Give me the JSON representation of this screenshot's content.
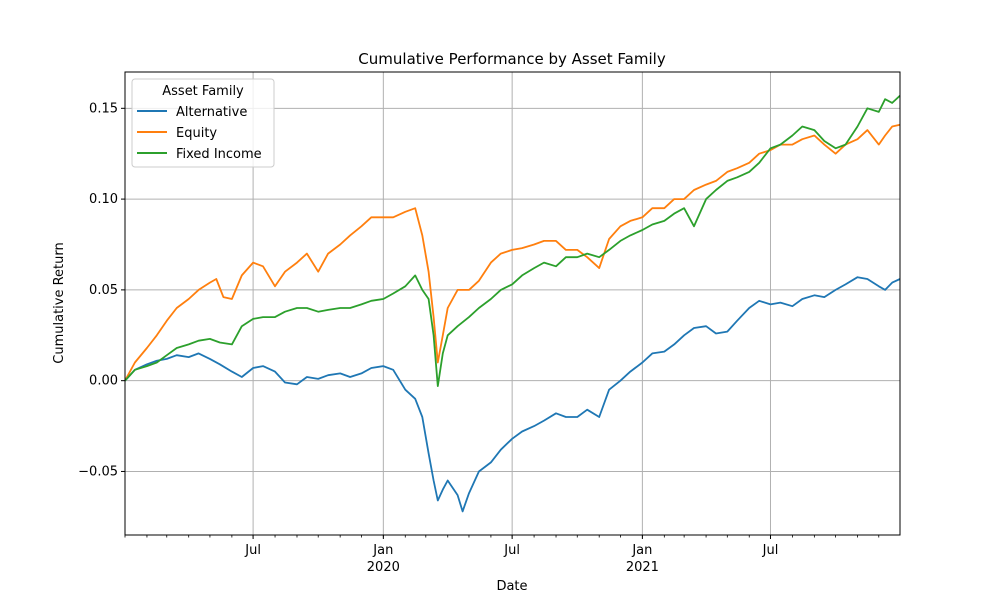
{
  "chart_data": {
    "type": "line",
    "title": "Cumulative Performance by Asset Family",
    "xlabel": "Date",
    "ylabel": "Cumulative Return",
    "xlim": [
      "2019-01-01",
      "2021-12-31"
    ],
    "ylim": [
      -0.085,
      0.17
    ],
    "grid": true,
    "legend": {
      "title": "Asset Family",
      "placement": "top-left"
    },
    "yticks": [
      {
        "value": -0.05,
        "label": "−0.05"
      },
      {
        "value": 0.0,
        "label": "0.00"
      },
      {
        "value": 0.05,
        "label": "0.05"
      },
      {
        "value": 0.1,
        "label": "0.10"
      },
      {
        "value": 0.15,
        "label": "0.15"
      }
    ],
    "xticks_major": [
      {
        "date": "2019-07-01",
        "label": "Jul",
        "sublabel": ""
      },
      {
        "date": "2020-01-01",
        "label": "Jan",
        "sublabel": "2020"
      },
      {
        "date": "2020-07-01",
        "label": "Jul",
        "sublabel": ""
      },
      {
        "date": "2021-01-01",
        "label": "Jan",
        "sublabel": "2021"
      },
      {
        "date": "2021-07-01",
        "label": "Jul",
        "sublabel": ""
      }
    ],
    "series": [
      {
        "name": "Alternative",
        "color": "#1f77b4",
        "points": [
          [
            "2019-01-01",
            0.0
          ],
          [
            "2019-01-15",
            0.006
          ],
          [
            "2019-02-01",
            0.009
          ],
          [
            "2019-02-15",
            0.011
          ],
          [
            "2019-03-01",
            0.012
          ],
          [
            "2019-03-15",
            0.014
          ],
          [
            "2019-04-01",
            0.013
          ],
          [
            "2019-04-15",
            0.015
          ],
          [
            "2019-05-01",
            0.012
          ],
          [
            "2019-05-15",
            0.009
          ],
          [
            "2019-06-01",
            0.005
          ],
          [
            "2019-06-15",
            0.002
          ],
          [
            "2019-07-01",
            0.007
          ],
          [
            "2019-07-15",
            0.008
          ],
          [
            "2019-08-01",
            0.005
          ],
          [
            "2019-08-15",
            -0.001
          ],
          [
            "2019-09-01",
            -0.002
          ],
          [
            "2019-09-15",
            0.002
          ],
          [
            "2019-10-01",
            0.001
          ],
          [
            "2019-10-15",
            0.003
          ],
          [
            "2019-11-01",
            0.004
          ],
          [
            "2019-11-15",
            0.002
          ],
          [
            "2019-12-01",
            0.004
          ],
          [
            "2019-12-15",
            0.007
          ],
          [
            "2020-01-01",
            0.008
          ],
          [
            "2020-01-15",
            0.006
          ],
          [
            "2020-02-01",
            -0.005
          ],
          [
            "2020-02-15",
            -0.01
          ],
          [
            "2020-02-25",
            -0.02
          ],
          [
            "2020-03-05",
            -0.04
          ],
          [
            "2020-03-12",
            -0.055
          ],
          [
            "2020-03-18",
            -0.066
          ],
          [
            "2020-03-25",
            -0.06
          ],
          [
            "2020-04-01",
            -0.055
          ],
          [
            "2020-04-15",
            -0.063
          ],
          [
            "2020-04-22",
            -0.072
          ],
          [
            "2020-05-01",
            -0.062
          ],
          [
            "2020-05-15",
            -0.05
          ],
          [
            "2020-06-01",
            -0.045
          ],
          [
            "2020-06-15",
            -0.038
          ],
          [
            "2020-07-01",
            -0.032
          ],
          [
            "2020-07-15",
            -0.028
          ],
          [
            "2020-08-01",
            -0.025
          ],
          [
            "2020-08-15",
            -0.022
          ],
          [
            "2020-09-01",
            -0.018
          ],
          [
            "2020-09-15",
            -0.02
          ],
          [
            "2020-10-01",
            -0.02
          ],
          [
            "2020-10-15",
            -0.016
          ],
          [
            "2020-11-01",
            -0.02
          ],
          [
            "2020-11-15",
            -0.005
          ],
          [
            "2020-12-01",
            0.0
          ],
          [
            "2020-12-15",
            0.005
          ],
          [
            "2021-01-01",
            0.01
          ],
          [
            "2021-01-15",
            0.015
          ],
          [
            "2021-02-01",
            0.016
          ],
          [
            "2021-02-15",
            0.02
          ],
          [
            "2021-03-01",
            0.025
          ],
          [
            "2021-03-15",
            0.029
          ],
          [
            "2021-04-01",
            0.03
          ],
          [
            "2021-04-15",
            0.026
          ],
          [
            "2021-05-01",
            0.027
          ],
          [
            "2021-05-15",
            0.033
          ],
          [
            "2021-06-01",
            0.04
          ],
          [
            "2021-06-15",
            0.044
          ],
          [
            "2021-07-01",
            0.042
          ],
          [
            "2021-07-15",
            0.043
          ],
          [
            "2021-08-01",
            0.041
          ],
          [
            "2021-08-15",
            0.045
          ],
          [
            "2021-09-01",
            0.047
          ],
          [
            "2021-09-15",
            0.046
          ],
          [
            "2021-10-01",
            0.05
          ],
          [
            "2021-10-15",
            0.053
          ],
          [
            "2021-11-01",
            0.057
          ],
          [
            "2021-11-15",
            0.056
          ],
          [
            "2021-12-01",
            0.052
          ],
          [
            "2021-12-10",
            0.05
          ],
          [
            "2021-12-20",
            0.054
          ],
          [
            "2021-12-31",
            0.056
          ]
        ]
      },
      {
        "name": "Equity",
        "color": "#ff7f0e",
        "points": [
          [
            "2019-01-01",
            0.0
          ],
          [
            "2019-01-15",
            0.01
          ],
          [
            "2019-02-01",
            0.018
          ],
          [
            "2019-02-15",
            0.025
          ],
          [
            "2019-03-01",
            0.033
          ],
          [
            "2019-03-15",
            0.04
          ],
          [
            "2019-04-01",
            0.045
          ],
          [
            "2019-04-15",
            0.05
          ],
          [
            "2019-05-01",
            0.054
          ],
          [
            "2019-05-10",
            0.056
          ],
          [
            "2019-05-20",
            0.046
          ],
          [
            "2019-06-01",
            0.045
          ],
          [
            "2019-06-15",
            0.058
          ],
          [
            "2019-07-01",
            0.065
          ],
          [
            "2019-07-15",
            0.063
          ],
          [
            "2019-08-01",
            0.052
          ],
          [
            "2019-08-15",
            0.06
          ],
          [
            "2019-09-01",
            0.065
          ],
          [
            "2019-09-15",
            0.07
          ],
          [
            "2019-10-01",
            0.06
          ],
          [
            "2019-10-15",
            0.07
          ],
          [
            "2019-11-01",
            0.075
          ],
          [
            "2019-11-15",
            0.08
          ],
          [
            "2019-12-01",
            0.085
          ],
          [
            "2019-12-15",
            0.09
          ],
          [
            "2020-01-01",
            0.09
          ],
          [
            "2020-01-15",
            0.09
          ],
          [
            "2020-02-01",
            0.093
          ],
          [
            "2020-02-15",
            0.095
          ],
          [
            "2020-02-25",
            0.08
          ],
          [
            "2020-03-05",
            0.06
          ],
          [
            "2020-03-12",
            0.035
          ],
          [
            "2020-03-18",
            0.01
          ],
          [
            "2020-03-25",
            0.025
          ],
          [
            "2020-04-01",
            0.04
          ],
          [
            "2020-04-15",
            0.05
          ],
          [
            "2020-05-01",
            0.05
          ],
          [
            "2020-05-15",
            0.055
          ],
          [
            "2020-06-01",
            0.065
          ],
          [
            "2020-06-15",
            0.07
          ],
          [
            "2020-07-01",
            0.072
          ],
          [
            "2020-07-15",
            0.073
          ],
          [
            "2020-08-01",
            0.075
          ],
          [
            "2020-08-15",
            0.077
          ],
          [
            "2020-09-01",
            0.077
          ],
          [
            "2020-09-15",
            0.072
          ],
          [
            "2020-10-01",
            0.072
          ],
          [
            "2020-10-15",
            0.068
          ],
          [
            "2020-11-01",
            0.062
          ],
          [
            "2020-11-15",
            0.078
          ],
          [
            "2020-12-01",
            0.085
          ],
          [
            "2020-12-15",
            0.088
          ],
          [
            "2021-01-01",
            0.09
          ],
          [
            "2021-01-15",
            0.095
          ],
          [
            "2021-02-01",
            0.095
          ],
          [
            "2021-02-15",
            0.1
          ],
          [
            "2021-03-01",
            0.1
          ],
          [
            "2021-03-15",
            0.105
          ],
          [
            "2021-04-01",
            0.108
          ],
          [
            "2021-04-15",
            0.11
          ],
          [
            "2021-05-01",
            0.115
          ],
          [
            "2021-05-15",
            0.117
          ],
          [
            "2021-06-01",
            0.12
          ],
          [
            "2021-06-15",
            0.125
          ],
          [
            "2021-07-01",
            0.127
          ],
          [
            "2021-07-15",
            0.13
          ],
          [
            "2021-08-01",
            0.13
          ],
          [
            "2021-08-15",
            0.133
          ],
          [
            "2021-09-01",
            0.135
          ],
          [
            "2021-09-15",
            0.13
          ],
          [
            "2021-10-01",
            0.125
          ],
          [
            "2021-10-15",
            0.13
          ],
          [
            "2021-11-01",
            0.133
          ],
          [
            "2021-11-15",
            0.138
          ],
          [
            "2021-12-01",
            0.13
          ],
          [
            "2021-12-10",
            0.135
          ],
          [
            "2021-12-20",
            0.14
          ],
          [
            "2021-12-31",
            0.141
          ]
        ]
      },
      {
        "name": "Fixed Income",
        "color": "#2ca02c",
        "points": [
          [
            "2019-01-01",
            0.0
          ],
          [
            "2019-01-15",
            0.006
          ],
          [
            "2019-02-01",
            0.008
          ],
          [
            "2019-02-15",
            0.01
          ],
          [
            "2019-03-01",
            0.014
          ],
          [
            "2019-03-15",
            0.018
          ],
          [
            "2019-04-01",
            0.02
          ],
          [
            "2019-04-15",
            0.022
          ],
          [
            "2019-05-01",
            0.023
          ],
          [
            "2019-05-15",
            0.021
          ],
          [
            "2019-06-01",
            0.02
          ],
          [
            "2019-06-15",
            0.03
          ],
          [
            "2019-07-01",
            0.034
          ],
          [
            "2019-07-15",
            0.035
          ],
          [
            "2019-08-01",
            0.035
          ],
          [
            "2019-08-15",
            0.038
          ],
          [
            "2019-09-01",
            0.04
          ],
          [
            "2019-09-15",
            0.04
          ],
          [
            "2019-10-01",
            0.038
          ],
          [
            "2019-10-15",
            0.039
          ],
          [
            "2019-11-01",
            0.04
          ],
          [
            "2019-11-15",
            0.04
          ],
          [
            "2019-12-01",
            0.042
          ],
          [
            "2019-12-15",
            0.044
          ],
          [
            "2020-01-01",
            0.045
          ],
          [
            "2020-01-15",
            0.048
          ],
          [
            "2020-02-01",
            0.052
          ],
          [
            "2020-02-15",
            0.058
          ],
          [
            "2020-02-25",
            0.05
          ],
          [
            "2020-03-05",
            0.045
          ],
          [
            "2020-03-12",
            0.025
          ],
          [
            "2020-03-18",
            -0.003
          ],
          [
            "2020-03-25",
            0.015
          ],
          [
            "2020-04-01",
            0.025
          ],
          [
            "2020-04-15",
            0.03
          ],
          [
            "2020-05-01",
            0.035
          ],
          [
            "2020-05-15",
            0.04
          ],
          [
            "2020-06-01",
            0.045
          ],
          [
            "2020-06-15",
            0.05
          ],
          [
            "2020-07-01",
            0.053
          ],
          [
            "2020-07-15",
            0.058
          ],
          [
            "2020-08-01",
            0.062
          ],
          [
            "2020-08-15",
            0.065
          ],
          [
            "2020-09-01",
            0.063
          ],
          [
            "2020-09-15",
            0.068
          ],
          [
            "2020-10-01",
            0.068
          ],
          [
            "2020-10-15",
            0.07
          ],
          [
            "2020-11-01",
            0.068
          ],
          [
            "2020-11-15",
            0.072
          ],
          [
            "2020-12-01",
            0.077
          ],
          [
            "2020-12-15",
            0.08
          ],
          [
            "2021-01-01",
            0.083
          ],
          [
            "2021-01-15",
            0.086
          ],
          [
            "2021-02-01",
            0.088
          ],
          [
            "2021-02-15",
            0.092
          ],
          [
            "2021-03-01",
            0.095
          ],
          [
            "2021-03-15",
            0.085
          ],
          [
            "2021-04-01",
            0.1
          ],
          [
            "2021-04-15",
            0.105
          ],
          [
            "2021-05-01",
            0.11
          ],
          [
            "2021-05-15",
            0.112
          ],
          [
            "2021-06-01",
            0.115
          ],
          [
            "2021-06-15",
            0.12
          ],
          [
            "2021-07-01",
            0.128
          ],
          [
            "2021-07-15",
            0.13
          ],
          [
            "2021-08-01",
            0.135
          ],
          [
            "2021-08-15",
            0.14
          ],
          [
            "2021-09-01",
            0.138
          ],
          [
            "2021-09-15",
            0.132
          ],
          [
            "2021-10-01",
            0.128
          ],
          [
            "2021-10-15",
            0.13
          ],
          [
            "2021-11-01",
            0.14
          ],
          [
            "2021-11-15",
            0.15
          ],
          [
            "2021-12-01",
            0.148
          ],
          [
            "2021-12-10",
            0.155
          ],
          [
            "2021-12-20",
            0.153
          ],
          [
            "2021-12-31",
            0.157
          ]
        ]
      }
    ]
  }
}
